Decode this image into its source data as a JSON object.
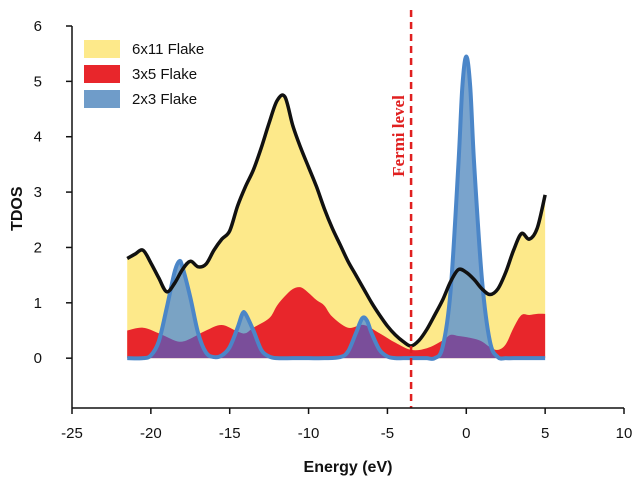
{
  "chart_data": {
    "type": "area",
    "title": "",
    "xlabel": "Energy (eV)",
    "ylabel": "TDOS",
    "xlim": [
      -25,
      10
    ],
    "ylim": [
      -0.9,
      6
    ],
    "xticks": [
      -25,
      -20,
      -15,
      -10,
      -5,
      0,
      5,
      10
    ],
    "yticks": [
      0,
      1,
      2,
      3,
      4,
      5,
      6
    ],
    "grid": false,
    "legend": "top-left",
    "annotations": [
      {
        "text": "Fermi level",
        "x": -3.5,
        "orientation": "vertical",
        "color": "#e02020"
      }
    ],
    "series": [
      {
        "name": "6x11 Flake",
        "color": "#fde98a",
        "outline": "#111111",
        "x": [
          -21.5,
          -21,
          -20.5,
          -20,
          -19.5,
          -19,
          -18.5,
          -18,
          -17.5,
          -17,
          -16.5,
          -16,
          -15.5,
          -15,
          -14.5,
          -14,
          -13.5,
          -13,
          -12.5,
          -12,
          -11.5,
          -11,
          -10.5,
          -10,
          -9.5,
          -9,
          -8.5,
          -8,
          -7.5,
          -7,
          -6.5,
          -6,
          -5.5,
          -5,
          -4.5,
          -4,
          -3.5,
          -3,
          -2.5,
          -2,
          -1.5,
          -1,
          -0.5,
          0,
          0.5,
          1,
          1.5,
          2,
          2.5,
          3,
          3.5,
          4,
          4.5,
          5
        ],
        "values": [
          1.8,
          1.88,
          1.95,
          1.72,
          1.45,
          1.2,
          1.35,
          1.6,
          1.75,
          1.65,
          1.7,
          1.95,
          2.15,
          2.3,
          2.75,
          3.1,
          3.4,
          3.8,
          4.25,
          4.65,
          4.72,
          4.2,
          3.8,
          3.45,
          3.1,
          2.7,
          2.35,
          2.05,
          1.75,
          1.5,
          1.25,
          1.0,
          0.78,
          0.58,
          0.42,
          0.3,
          0.22,
          0.32,
          0.52,
          0.78,
          1.05,
          1.38,
          1.6,
          1.55,
          1.42,
          1.25,
          1.15,
          1.25,
          1.55,
          1.95,
          2.25,
          2.15,
          2.35,
          2.95
        ]
      },
      {
        "name": "3x5 Flake",
        "color": "#e8262b",
        "x": [
          -21.5,
          -20.5,
          -19.5,
          -18.5,
          -18,
          -17.5,
          -16.5,
          -15.5,
          -14.5,
          -14,
          -13.5,
          -12.5,
          -12,
          -11.5,
          -11,
          -10.5,
          -10,
          -9.5,
          -9,
          -8.5,
          -7.5,
          -6.5,
          -5.5,
          -4.5,
          -3.5,
          -2.5,
          -1.5,
          -1,
          -0.5,
          0,
          0.5,
          1,
          1.5,
          2,
          2.5,
          3,
          3.5,
          4,
          4.5,
          5
        ],
        "values": [
          0.5,
          0.55,
          0.45,
          0.32,
          0.3,
          0.35,
          0.5,
          0.6,
          0.48,
          0.45,
          0.55,
          0.72,
          0.95,
          1.12,
          1.25,
          1.28,
          1.18,
          1.05,
          0.95,
          0.75,
          0.55,
          0.6,
          0.45,
          0.28,
          0.15,
          0.18,
          0.32,
          0.42,
          0.4,
          0.38,
          0.35,
          0.3,
          0.2,
          0.15,
          0.25,
          0.55,
          0.78,
          0.78,
          0.8,
          0.8
        ]
      },
      {
        "name": "2x3 Flake",
        "color": "#4b86c8",
        "fill": "#6f9cc9",
        "x": [
          -21.5,
          -20.5,
          -20,
          -19.5,
          -19,
          -18.5,
          -18.2,
          -18,
          -17.5,
          -17,
          -16.5,
          -16,
          -15.5,
          -15,
          -14.5,
          -14.2,
          -14,
          -13.5,
          -13,
          -12.5,
          -12,
          -11,
          -10,
          -9,
          -8,
          -7.5,
          -7,
          -6.6,
          -6.3,
          -6,
          -5.5,
          -5,
          -4.5,
          -4,
          -3.5,
          -3,
          -2.5,
          -2,
          -1.5,
          -1,
          -0.5,
          -0.25,
          0,
          0.25,
          0.5,
          1,
          1.5,
          2,
          2.5,
          3,
          4,
          5
        ],
        "values": [
          0.0,
          0.0,
          0.05,
          0.3,
          0.9,
          1.55,
          1.75,
          1.65,
          1.1,
          0.45,
          0.1,
          0.02,
          0.05,
          0.2,
          0.55,
          0.8,
          0.8,
          0.5,
          0.15,
          0.03,
          0.0,
          0.0,
          0.0,
          0.0,
          0.02,
          0.12,
          0.45,
          0.72,
          0.68,
          0.45,
          0.15,
          0.03,
          0.0,
          0.0,
          0.0,
          0.0,
          0.0,
          0.0,
          0.2,
          1.2,
          3.5,
          4.9,
          5.45,
          4.9,
          3.5,
          1.4,
          0.3,
          0.02,
          0.0,
          0.0,
          0.0,
          0.0
        ]
      }
    ],
    "overlap_color": "#7a4e9a"
  }
}
